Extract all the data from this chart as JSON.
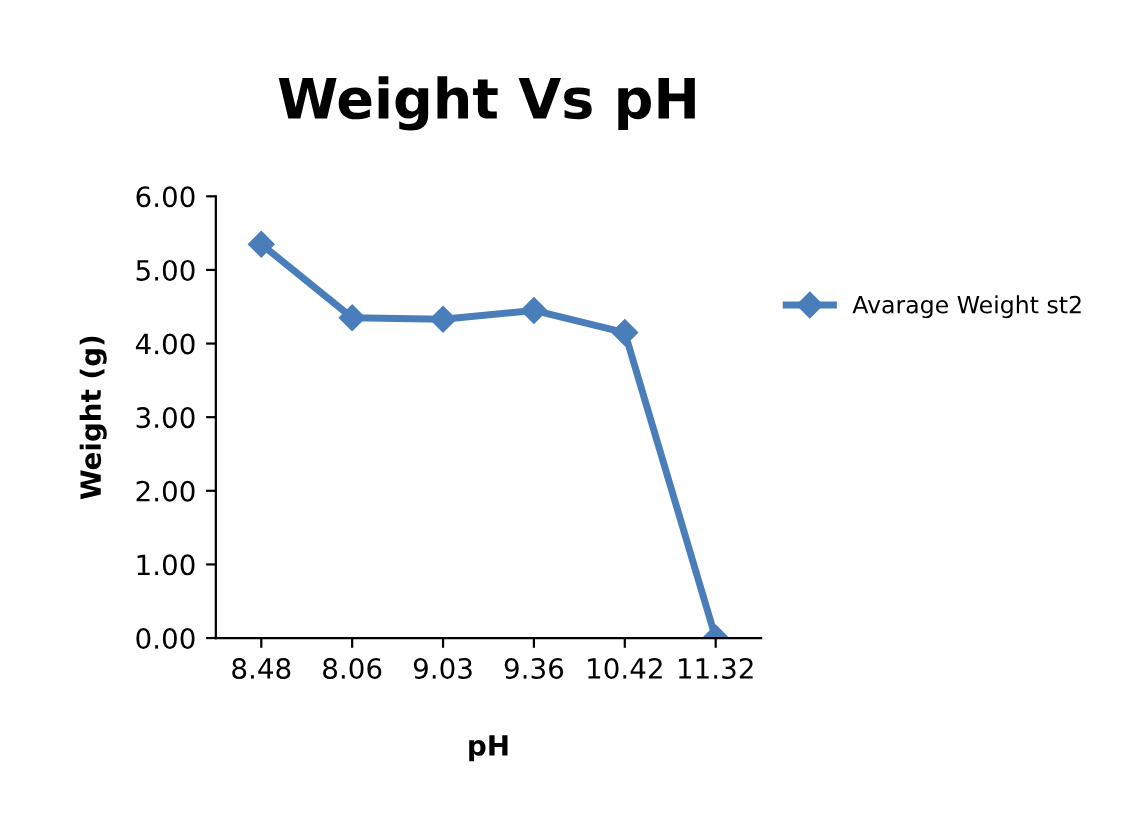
{
  "chart_data": {
    "type": "line",
    "title": "Weight Vs pH",
    "xlabel": "pH",
    "ylabel": "Weight (g)",
    "categories": [
      "8.48",
      "8.06",
      "9.03",
      "9.36",
      "10.42",
      "11.32"
    ],
    "series": [
      {
        "name": "Avarage Weight st2",
        "color": "#4a7ebb",
        "values": [
          5.35,
          4.35,
          4.33,
          4.45,
          4.15,
          0.0
        ]
      }
    ],
    "ylim": [
      0,
      6
    ],
    "yticks": [
      {
        "value": 0,
        "label": "0.00"
      },
      {
        "value": 1,
        "label": "1.00"
      },
      {
        "value": 2,
        "label": "2.00"
      },
      {
        "value": 3,
        "label": "3.00"
      },
      {
        "value": 4,
        "label": "4.00"
      },
      {
        "value": 5,
        "label": "5.00"
      },
      {
        "value": 6,
        "label": "6.00"
      }
    ],
    "marker": "diamond",
    "line_style": "solid",
    "legend": "right",
    "grid": false
  }
}
